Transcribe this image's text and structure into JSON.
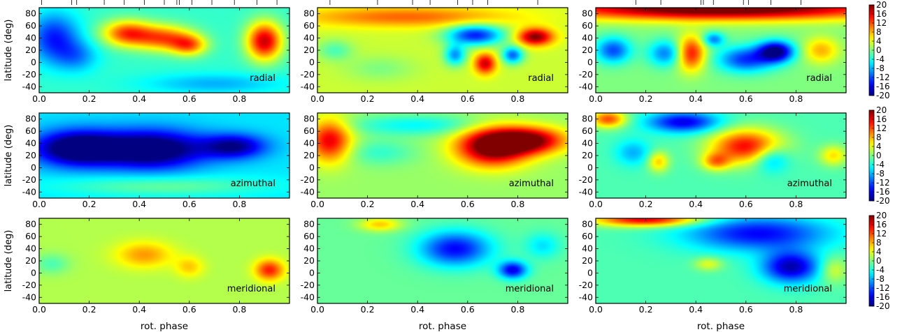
{
  "chart_data": {
    "type": "heatmap",
    "layout": {
      "rows": 3,
      "cols": 3
    },
    "xlabel": "rot. phase",
    "ylabel": "latitude (deg)",
    "xlim": [
      0,
      1
    ],
    "ylim": [
      -50,
      90
    ],
    "xticks": [
      0.0,
      0.2,
      0.4,
      0.6,
      0.8
    ],
    "xtick_labels": [
      "0.0",
      "0.2",
      "0.4",
      "0.6",
      "0.8"
    ],
    "yticks": [
      80,
      60,
      40,
      20,
      0,
      -20,
      -40
    ],
    "ytick_labels": [
      "80",
      "60",
      "40",
      "20",
      "0",
      "-20",
      "-40"
    ],
    "colorbar": {
      "vmin": -20,
      "vmax": 20,
      "ticks": [
        20,
        16,
        12,
        8,
        4,
        0,
        -4,
        -8,
        -12,
        -16,
        -20
      ],
      "tick_labels": [
        "20",
        "16",
        "12",
        "8",
        "4",
        "0",
        "-4",
        "-8",
        "-12",
        "-16",
        "-20"
      ],
      "colormap": "jet"
    },
    "observation_phases": [
      [
        0.01,
        0.13,
        0.15,
        0.26,
        0.34,
        0.42,
        0.5,
        0.55,
        0.56,
        0.61,
        0.69,
        0.78,
        0.87,
        0.95
      ],
      [
        0.05,
        0.24,
        0.38,
        0.45,
        0.56,
        0.62,
        0.68,
        0.88
      ],
      [
        0.16,
        0.26,
        0.42,
        0.43,
        0.47,
        0.59,
        0.61,
        0.7,
        0.82
      ]
    ],
    "panels": [
      {
        "row": 0,
        "col": 0,
        "component": "radial",
        "background": -3,
        "features": [
          {
            "x": 0.35,
            "y": 48,
            "dx": 0.07,
            "dy": 15,
            "value": 15
          },
          {
            "x": 0.5,
            "y": 40,
            "dx": 0.08,
            "dy": 15,
            "value": 14
          },
          {
            "x": 0.6,
            "y": 28,
            "dx": 0.05,
            "dy": 12,
            "value": 12
          },
          {
            "x": 0.9,
            "y": 35,
            "dx": 0.05,
            "dy": 22,
            "value": 20
          },
          {
            "x": 0.06,
            "y": 40,
            "dx": 0.07,
            "dy": 28,
            "value": -11
          },
          {
            "x": 0.15,
            "y": 10,
            "dx": 0.06,
            "dy": 18,
            "value": -6
          },
          {
            "x": 0.7,
            "y": -35,
            "dx": 0.2,
            "dy": 12,
            "value": -5
          }
        ]
      },
      {
        "row": 0,
        "col": 1,
        "component": "radial",
        "background": 3,
        "features": [
          {
            "x": 0.35,
            "y": 75,
            "dx": 0.3,
            "dy": 12,
            "value": 8
          },
          {
            "x": 0.63,
            "y": 45,
            "dx": 0.08,
            "dy": 12,
            "value": -17
          },
          {
            "x": 0.87,
            "y": 42,
            "dx": 0.05,
            "dy": 10,
            "value": 17
          },
          {
            "x": 0.67,
            "y": -2,
            "dx": 0.03,
            "dy": 12,
            "value": 14
          },
          {
            "x": 0.78,
            "y": 12,
            "dx": 0.03,
            "dy": 10,
            "value": -14
          },
          {
            "x": 0.55,
            "y": 12,
            "dx": 0.03,
            "dy": 12,
            "value": -12
          },
          {
            "x": 0.07,
            "y": 20,
            "dx": 0.05,
            "dy": 12,
            "value": -5
          },
          {
            "x": 0.25,
            "y": -10,
            "dx": 0.1,
            "dy": 15,
            "value": -3
          }
        ]
      },
      {
        "row": 0,
        "col": 2,
        "component": "radial",
        "background": 0,
        "features": [
          {
            "x": 0.5,
            "y": 90,
            "dx": 0.5,
            "dy": 14,
            "value": 24
          },
          {
            "x": 0.72,
            "y": 18,
            "dx": 0.05,
            "dy": 12,
            "value": -20
          },
          {
            "x": 0.6,
            "y": 5,
            "dx": 0.08,
            "dy": 15,
            "value": -13
          },
          {
            "x": 0.38,
            "y": 15,
            "dx": 0.04,
            "dy": 20,
            "value": 15
          },
          {
            "x": 0.07,
            "y": 20,
            "dx": 0.05,
            "dy": 15,
            "value": -12
          },
          {
            "x": 0.28,
            "y": 15,
            "dx": 0.05,
            "dy": 15,
            "value": -10
          },
          {
            "x": 0.47,
            "y": 38,
            "dx": 0.03,
            "dy": 8,
            "value": -10
          },
          {
            "x": 0.9,
            "y": 20,
            "dx": 0.05,
            "dy": 15,
            "value": 8
          }
        ]
      },
      {
        "row": 1,
        "col": 0,
        "component": "azimuthal",
        "background": -6,
        "features": [
          {
            "x": 0.15,
            "y": 32,
            "dx": 0.12,
            "dy": 20,
            "value": -18
          },
          {
            "x": 0.45,
            "y": 30,
            "dx": 0.15,
            "dy": 22,
            "value": -18
          },
          {
            "x": 0.78,
            "y": 35,
            "dx": 0.09,
            "dy": 14,
            "value": -13
          },
          {
            "x": 0.5,
            "y": -30,
            "dx": 0.3,
            "dy": 12,
            "value": 5
          }
        ]
      },
      {
        "row": 1,
        "col": 1,
        "component": "azimuthal",
        "background": 1,
        "features": [
          {
            "x": 0.7,
            "y": 35,
            "dx": 0.1,
            "dy": 22,
            "value": 22
          },
          {
            "x": 0.85,
            "y": 45,
            "dx": 0.1,
            "dy": 15,
            "value": 18
          },
          {
            "x": 0.05,
            "y": 45,
            "dx": 0.06,
            "dy": 25,
            "value": 15
          },
          {
            "x": 0.4,
            "y": 70,
            "dx": 0.2,
            "dy": 12,
            "value": -6
          },
          {
            "x": 0.25,
            "y": 25,
            "dx": 0.1,
            "dy": 15,
            "value": -4
          }
        ]
      },
      {
        "row": 1,
        "col": 2,
        "component": "azimuthal",
        "background": -2,
        "features": [
          {
            "x": 0.6,
            "y": 35,
            "dx": 0.1,
            "dy": 20,
            "value": 17
          },
          {
            "x": 0.48,
            "y": 10,
            "dx": 0.04,
            "dy": 10,
            "value": 10
          },
          {
            "x": 0.25,
            "y": 10,
            "dx": 0.03,
            "dy": 12,
            "value": 9
          },
          {
            "x": 0.95,
            "y": 20,
            "dx": 0.04,
            "dy": 12,
            "value": 8
          },
          {
            "x": 0.05,
            "y": 80,
            "dx": 0.05,
            "dy": 10,
            "value": 14
          },
          {
            "x": 0.35,
            "y": 75,
            "dx": 0.1,
            "dy": 12,
            "value": -14
          },
          {
            "x": 0.7,
            "y": 15,
            "dx": 0.05,
            "dy": 15,
            "value": -8
          },
          {
            "x": 0.15,
            "y": 25,
            "dx": 0.05,
            "dy": 15,
            "value": -6
          }
        ]
      },
      {
        "row": 2,
        "col": 0,
        "component": "meridional",
        "background": 2,
        "features": [
          {
            "x": 0.42,
            "y": 30,
            "dx": 0.08,
            "dy": 15,
            "value": 7
          },
          {
            "x": 0.6,
            "y": 10,
            "dx": 0.04,
            "dy": 12,
            "value": 5
          },
          {
            "x": 0.92,
            "y": 5,
            "dx": 0.04,
            "dy": 12,
            "value": 12
          },
          {
            "x": 0.05,
            "y": 15,
            "dx": 0.05,
            "dy": 12,
            "value": -4
          }
        ]
      },
      {
        "row": 2,
        "col": 1,
        "component": "meridional",
        "background": -1,
        "features": [
          {
            "x": 0.55,
            "y": 40,
            "dx": 0.1,
            "dy": 20,
            "value": -14
          },
          {
            "x": 0.78,
            "y": 5,
            "dx": 0.04,
            "dy": 10,
            "value": -15
          },
          {
            "x": 0.25,
            "y": 80,
            "dx": 0.06,
            "dy": 8,
            "value": 8
          },
          {
            "x": 0.9,
            "y": 45,
            "dx": 0.05,
            "dy": 15,
            "value": -5
          }
        ]
      },
      {
        "row": 2,
        "col": 2,
        "component": "meridional",
        "background": -2,
        "features": [
          {
            "x": 0.2,
            "y": 88,
            "dx": 0.15,
            "dy": 8,
            "value": 18
          },
          {
            "x": 0.65,
            "y": 65,
            "dx": 0.2,
            "dy": 20,
            "value": -13
          },
          {
            "x": 0.78,
            "y": 10,
            "dx": 0.08,
            "dy": 18,
            "value": -16
          },
          {
            "x": 0.45,
            "y": 15,
            "dx": 0.04,
            "dy": 8,
            "value": 6
          },
          {
            "x": 0.95,
            "y": 5,
            "dx": 0.04,
            "dy": 15,
            "value": 6
          }
        ]
      }
    ]
  }
}
